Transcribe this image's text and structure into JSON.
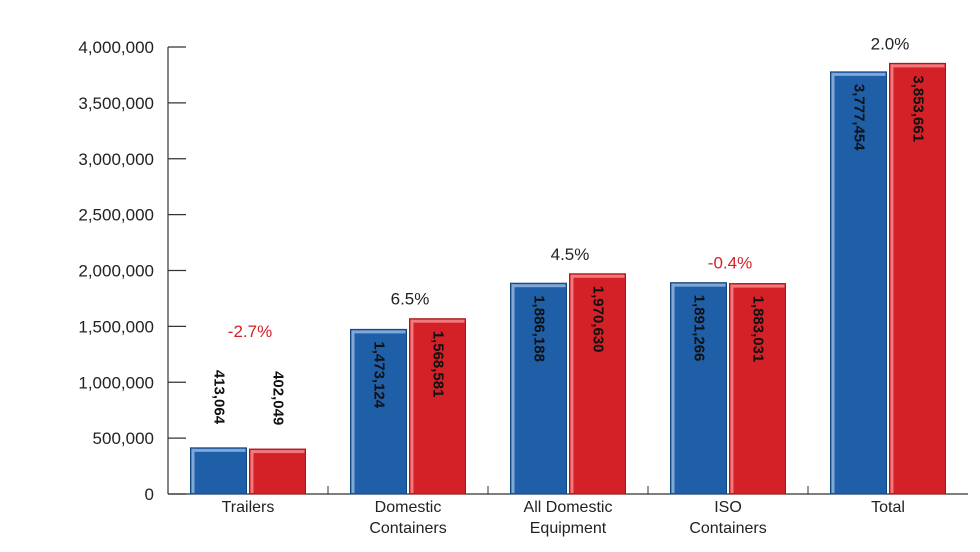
{
  "chart_data": {
    "type": "bar",
    "title": "",
    "xlabel": "",
    "ylabel": "",
    "ylim": [
      0,
      4000000
    ],
    "y_ticks": [
      "0",
      "500,000",
      "1,000,000",
      "1,500,000",
      "2,000,000",
      "2,500,000",
      "3,000,000",
      "3,500,000",
      "4,000,000"
    ],
    "categories": [
      {
        "label": "Trailers",
        "lines": [
          "Trailers"
        ]
      },
      {
        "label": "Domestic Containers",
        "lines": [
          "Domestic",
          "Containers"
        ]
      },
      {
        "label": "All Domestic Equipment",
        "lines": [
          "All Domestic",
          "Equipment"
        ]
      },
      {
        "label": "ISO Containers",
        "lines": [
          "ISO",
          "Containers"
        ]
      },
      {
        "label": "Total",
        "lines": [
          "Total"
        ]
      }
    ],
    "series": [
      {
        "color": "#1f5fa8",
        "values": [
          413064,
          1473124,
          1886188,
          1891266,
          3777454
        ],
        "labels": [
          "413,064",
          "1,473,124",
          "1,886,188",
          "1,891,266",
          "3,777,454"
        ]
      },
      {
        "color": "#d42027",
        "values": [
          402049,
          1568581,
          1970630,
          1883031,
          3853661
        ],
        "labels": [
          "402,049",
          "1,568,581",
          "1,970,630",
          "1,883,031",
          "3,853,661"
        ]
      }
    ],
    "pct_change": [
      "-2.7%",
      "6.5%",
      "4.5%",
      "-0.4%",
      "2.0%"
    ],
    "pct_colors": {
      "negative": "#d42027",
      "positive": "#222222"
    },
    "grid": false,
    "legend": "none"
  }
}
